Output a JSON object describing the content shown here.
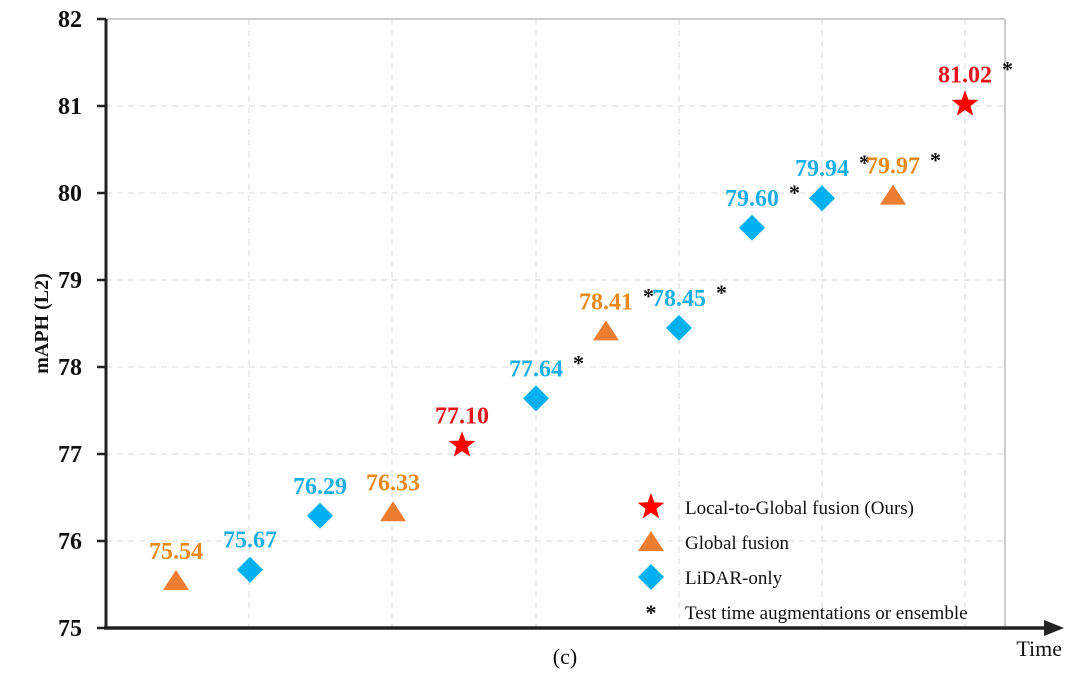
{
  "chart_data": {
    "type": "scatter",
    "title": "",
    "caption": "(c)",
    "xlabel": "Time",
    "ylabel": "mAPH (L2)",
    "ylim": [
      75,
      82
    ],
    "yticks": [
      75,
      76,
      77,
      78,
      79,
      80,
      81,
      82
    ],
    "grid": true,
    "legend_position": "bottom-right",
    "x": [
      1,
      2,
      3,
      4,
      5,
      6,
      7,
      8,
      9,
      10,
      11,
      12
    ],
    "points": [
      {
        "x": 1,
        "y": 75.54,
        "label": "75.54",
        "series": "Global fusion",
        "asterisk": false
      },
      {
        "x": 2,
        "y": 75.67,
        "label": "75.67",
        "series": "LiDAR-only",
        "asterisk": false
      },
      {
        "x": 3,
        "y": 76.29,
        "label": "76.29",
        "series": "LiDAR-only",
        "asterisk": false
      },
      {
        "x": 4,
        "y": 76.33,
        "label": "76.33",
        "series": "Global fusion",
        "asterisk": false
      },
      {
        "x": 5,
        "y": 77.1,
        "label": "77.10",
        "series": "Local-to-Global fusion (Ours)",
        "asterisk": false
      },
      {
        "x": 6,
        "y": 77.64,
        "label": "77.64",
        "series": "LiDAR-only",
        "asterisk": true
      },
      {
        "x": 7,
        "y": 78.41,
        "label": "78.41",
        "series": "Global fusion",
        "asterisk": true
      },
      {
        "x": 8,
        "y": 78.45,
        "label": "78.45",
        "series": "LiDAR-only",
        "asterisk": true
      },
      {
        "x": 9,
        "y": 79.6,
        "label": "79.60",
        "series": "LiDAR-only",
        "asterisk": true
      },
      {
        "x": 10,
        "y": 79.94,
        "label": "79.94",
        "series": "LiDAR-only",
        "asterisk": true
      },
      {
        "x": 11,
        "y": 79.97,
        "label": "79.97",
        "series": "Global fusion",
        "asterisk": true
      },
      {
        "x": 12,
        "y": 81.02,
        "label": "81.02",
        "series": "Local-to-Global fusion (Ours)",
        "asterisk": true
      }
    ],
    "series": [
      {
        "name": "Local-to-Global fusion (Ours)",
        "marker": "star",
        "color": "#FF0000",
        "label_color": "#E8141C"
      },
      {
        "name": "Global fusion",
        "marker": "triangle",
        "color": "#ED7D31",
        "label_color": "#E88A1A"
      },
      {
        "name": "LiDAR-only",
        "marker": "diamond",
        "color": "#00B0F0",
        "label_color": "#1AAEE6"
      }
    ],
    "legend": [
      {
        "marker": "star",
        "label": "Local-to-Global fusion (Ours)"
      },
      {
        "marker": "triangle",
        "label": "Global fusion"
      },
      {
        "marker": "diamond",
        "label": "LiDAR-only"
      },
      {
        "marker": "asterisk",
        "label": "Test time augmentations or ensemble"
      }
    ],
    "asterisk_symbol": "*"
  }
}
